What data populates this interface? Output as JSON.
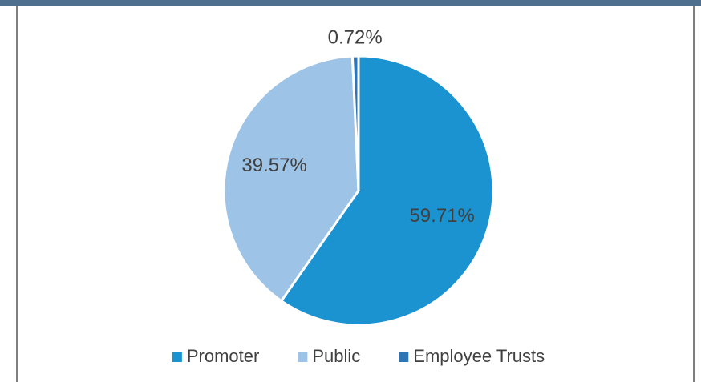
{
  "chart_data": {
    "type": "pie",
    "categories": [
      "Promoter",
      "Public",
      "Employee Trusts"
    ],
    "values": [
      59.71,
      39.57,
      0.72
    ],
    "value_labels": [
      "59.71%",
      "39.57%",
      "0.72%"
    ],
    "colors": [
      "#1b93d1",
      "#9dc3e6",
      "#2e75b6"
    ],
    "legend": "bottom"
  }
}
